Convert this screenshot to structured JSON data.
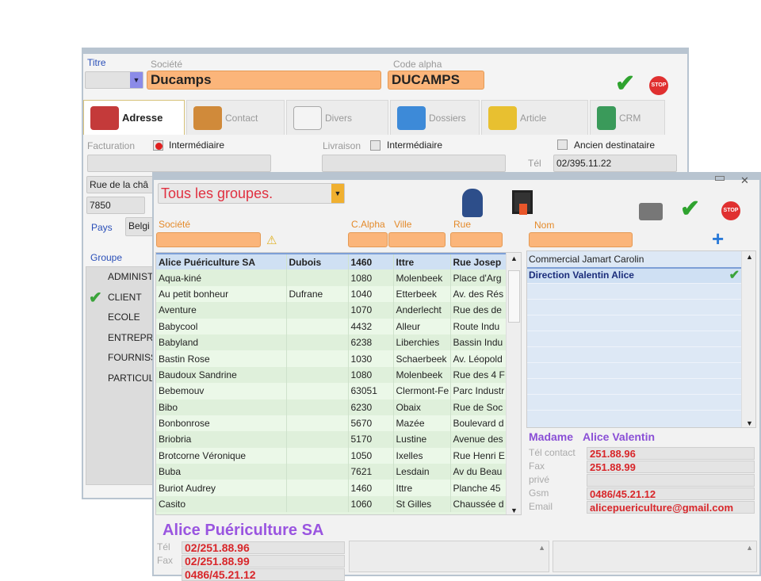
{
  "back": {
    "titre_label": "Titre",
    "societe_label": "Société",
    "societe_value": "Ducamps",
    "code_alpha_label": "Code alpha",
    "code_alpha_value": "DUCAMPS",
    "tabs": [
      {
        "label": "Adresse",
        "icon": "truck-icon"
      },
      {
        "label": "Contact",
        "icon": "people-icon"
      },
      {
        "label": "Divers",
        "icon": "box-icon"
      },
      {
        "label": "Dossiers",
        "icon": "folder-icon"
      },
      {
        "label": "Article",
        "icon": "cubes-icon"
      },
      {
        "label": "CRM",
        "icon": "signpost-icon"
      }
    ],
    "facturation_label": "Facturation",
    "intermediaire_label": "Intermédiaire",
    "livraison_label": "Livraison",
    "ancien_label": "Ancien destinataire",
    "tel_label": "Tél",
    "tel_value": "02/395.11.22",
    "rue_value": "Rue de la châ",
    "cp_value": "7850",
    "pays_label": "Pays",
    "pays_value": "Belgi",
    "groupe_label": "Groupe",
    "groupes": [
      "ADMINIST",
      "CLIENT",
      "ECOLE",
      "ENTREPR",
      "FOURNISS",
      "PARTICUL"
    ],
    "groupe_checked": "CLIENT"
  },
  "front": {
    "group_select": "Tous les groupes.",
    "societe_label": "Société",
    "calpha_label": "C.Alpha",
    "ville_label": "Ville",
    "rue_label": "Rue",
    "nom_label": "Nom",
    "rows": [
      [
        "Alice Puériculture SA",
        "Dubois",
        "1460",
        "Ittre",
        "Rue Josep"
      ],
      [
        "Aqua-kiné",
        "",
        "1080",
        "Molenbeek",
        "Place d'Arg"
      ],
      [
        "Au petit bonheur",
        "Dufrane",
        "1040",
        "Etterbeek",
        "Av. des Rés"
      ],
      [
        "Aventure",
        "",
        "1070",
        "Anderlecht",
        "Rue des de"
      ],
      [
        "Babycool",
        "",
        "4432",
        "Alleur",
        "Route Indu"
      ],
      [
        "Babyland",
        "",
        "6238",
        "Liberchies",
        "Bassin Indu"
      ],
      [
        "Bastin Rose",
        "",
        "1030",
        "Schaerbeek",
        "Av. Léopold"
      ],
      [
        "Baudoux Sandrine",
        "",
        "1080",
        "Molenbeek",
        "Rue des 4 F"
      ],
      [
        "Bebemouv",
        "",
        "63051",
        "Clermont-Fe",
        "Parc Industr"
      ],
      [
        "Bibo",
        "",
        "6230",
        "Obaix",
        "Rue de Soc"
      ],
      [
        "Bonbonrose",
        "",
        "5670",
        "Mazée",
        "Boulevard d"
      ],
      [
        "Briobria",
        "",
        "5170",
        "Lustine",
        "Avenue des"
      ],
      [
        "Brotcorne Véronique",
        "",
        "1050",
        "Ixelles",
        "Rue Henri E"
      ],
      [
        "Buba",
        "",
        "7621",
        "Lesdain",
        "Av du Beau"
      ],
      [
        "Buriot Audrey",
        "",
        "1460",
        "Ittre",
        "Planche 45"
      ],
      [
        "Casito",
        "",
        "1060",
        "St Gilles",
        "Chaussée d"
      ]
    ],
    "contacts": [
      {
        "label": "Commercial Jamart Carolin",
        "checked": false
      },
      {
        "label": "Direction Valentin Alice",
        "checked": true
      }
    ],
    "contact_title": "Madame",
    "contact_name": "Alice Valentin",
    "contact_fields": [
      {
        "label": "Tél contact",
        "value": "251.88.96"
      },
      {
        "label": "Fax",
        "value": "251.88.99"
      },
      {
        "label": "privé",
        "value": ""
      },
      {
        "label": "Gsm",
        "value": "0486/45.21.12"
      },
      {
        "label": "Email",
        "value": "alicepuericulture@gmail.com"
      }
    ],
    "company_name": "Alice Puériculture SA",
    "company_fields": [
      {
        "label": "Tél",
        "value": "02/251.88.96"
      },
      {
        "label": "Fax",
        "value": "02/251.88.99"
      },
      {
        "label": "",
        "value": "0486/45.21.12"
      }
    ]
  },
  "colors": {
    "accent_orange": "#fbb57a",
    "title_red": "#e03040",
    "purple": "#8a4fd6",
    "value_red": "#d8262a"
  }
}
